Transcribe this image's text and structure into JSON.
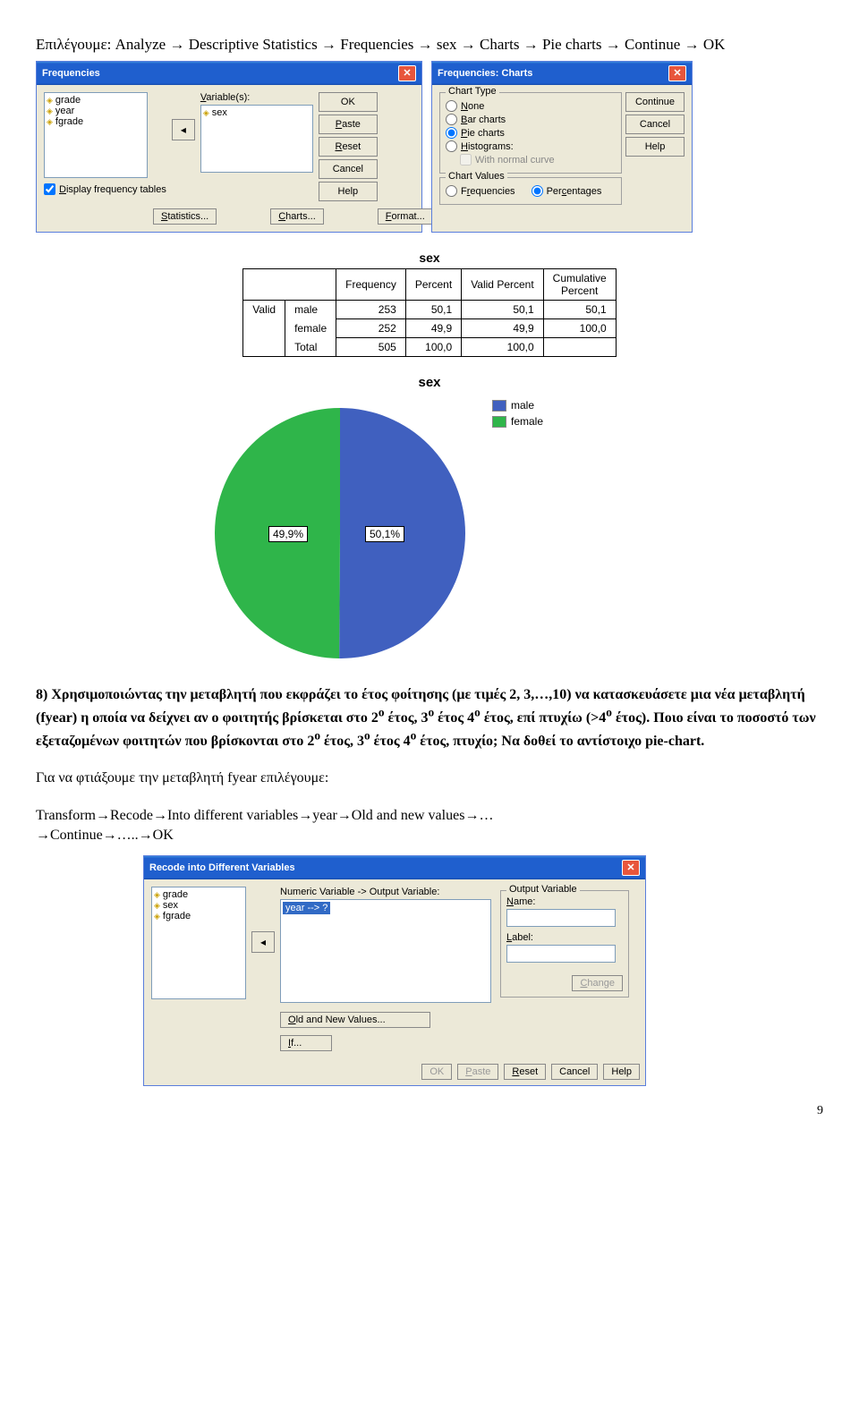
{
  "intro": {
    "prefix": "Επιλέγουμε: ",
    "path": [
      "Analyze",
      "Descriptive Statistics",
      "Frequencies",
      "sex",
      "Charts",
      "Pie charts",
      "Continue",
      "OK"
    ]
  },
  "freq_dialog": {
    "title": "Frequencies",
    "vars": [
      "grade",
      "year",
      "fgrade"
    ],
    "vars_label": "Variable(s):",
    "selected": [
      "sex"
    ],
    "buttons": [
      "OK",
      "Paste",
      "Reset",
      "Cancel",
      "Help"
    ],
    "checkbox": "Display frequency tables",
    "bottom": [
      "Statistics...",
      "Charts...",
      "Format..."
    ]
  },
  "charts_dialog": {
    "title": "Frequencies: Charts",
    "chart_type_label": "Chart Type",
    "options": [
      "None",
      "Bar charts",
      "Pie charts",
      "Histograms:"
    ],
    "selected_option": 2,
    "normal_curve": "With normal curve",
    "values_label": "Chart Values",
    "values": [
      "Frequencies",
      "Percentages"
    ],
    "selected_value": 1,
    "buttons": [
      "Continue",
      "Cancel",
      "Help"
    ]
  },
  "table": {
    "title": "sex",
    "headers": [
      "Frequency",
      "Percent",
      "Valid Percent",
      "Cumulative Percent"
    ],
    "rows": [
      {
        "group": "Valid",
        "label": "male",
        "vals": [
          "253",
          "50,1",
          "50,1",
          "50,1"
        ]
      },
      {
        "group": "",
        "label": "female",
        "vals": [
          "252",
          "49,9",
          "49,9",
          "100,0"
        ]
      },
      {
        "group": "",
        "label": "Total",
        "vals": [
          "505",
          "100,0",
          "100,0",
          ""
        ]
      }
    ]
  },
  "chart": {
    "title": "sex",
    "series": [
      {
        "label": "male",
        "value": 50.1,
        "color": "#4060bf"
      },
      {
        "label": "female",
        "value": 49.9,
        "color": "#2fb54a"
      }
    ],
    "slice_labels": [
      "50,1%",
      "49,9%"
    ],
    "background_color": "#ffffff",
    "label_fontsize": 12
  },
  "q8": {
    "text1": "8) Χρησιμοποιώντας την μεταβλητή που εκφράζει το έτος φοίτησης (με τιμές 2, 3,…,10) να κατασκευάσετε μια νέα μεταβλητή (fyear) η οποία να δείχνει αν ο φοιτητής βρίσκεται στο 2",
    "text2": " έτος, 3",
    "text3": " έτος 4",
    "text4": " έτος, επί πτυχίω (>4",
    "text5": " έτος). Ποιο είναι το ποσοστό των εξεταζομένων φοιτητών που βρίσκονται στο 2",
    "text6": " έτος, 3",
    "text7": " έτος 4",
    "text8": " έτος, πτυχίο; Να δοθεί το αντίστοιχο pie-chart.",
    "sup": "ο",
    "followup": "Για να φτιάξουμε την μεταβλητή fyear επιλέγουμε:",
    "path_prefix": "Transform",
    "path": [
      "Recode",
      "Into different variables",
      "year",
      "Old and new values",
      "…"
    ],
    "path_suffix1": "Continue",
    "path_suffix2": "…..",
    "path_suffix3": "OK"
  },
  "recode_dialog": {
    "title": "Recode into Different Variables",
    "vars": [
      "grade",
      "sex",
      "fgrade"
    ],
    "main_label": "Numeric Variable -> Output Variable:",
    "main_item": "year --> ?",
    "out_label": "Output Variable",
    "name": "Name:",
    "label": "Label:",
    "change": "Change",
    "oldnew": "Old and New Values...",
    "if": "If...",
    "buttons": [
      "OK",
      "Paste",
      "Reset",
      "Cancel",
      "Help"
    ]
  },
  "page_number": "9"
}
